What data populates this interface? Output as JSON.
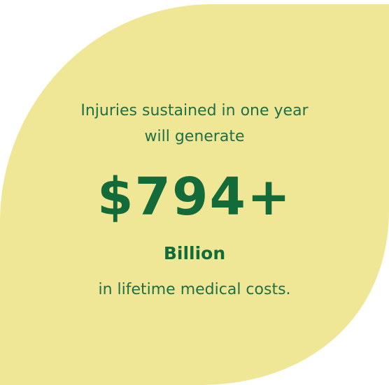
{
  "card": {
    "background_color": "#f0e796",
    "text_color": "#1f6f47",
    "figure_color": "#146b3a"
  },
  "stat": {
    "intro_line1": "Injuries sustained in one year",
    "intro_line2": "will generate",
    "figure": "$794+",
    "unit": "Billion",
    "outro": "in lifetime medical costs."
  }
}
